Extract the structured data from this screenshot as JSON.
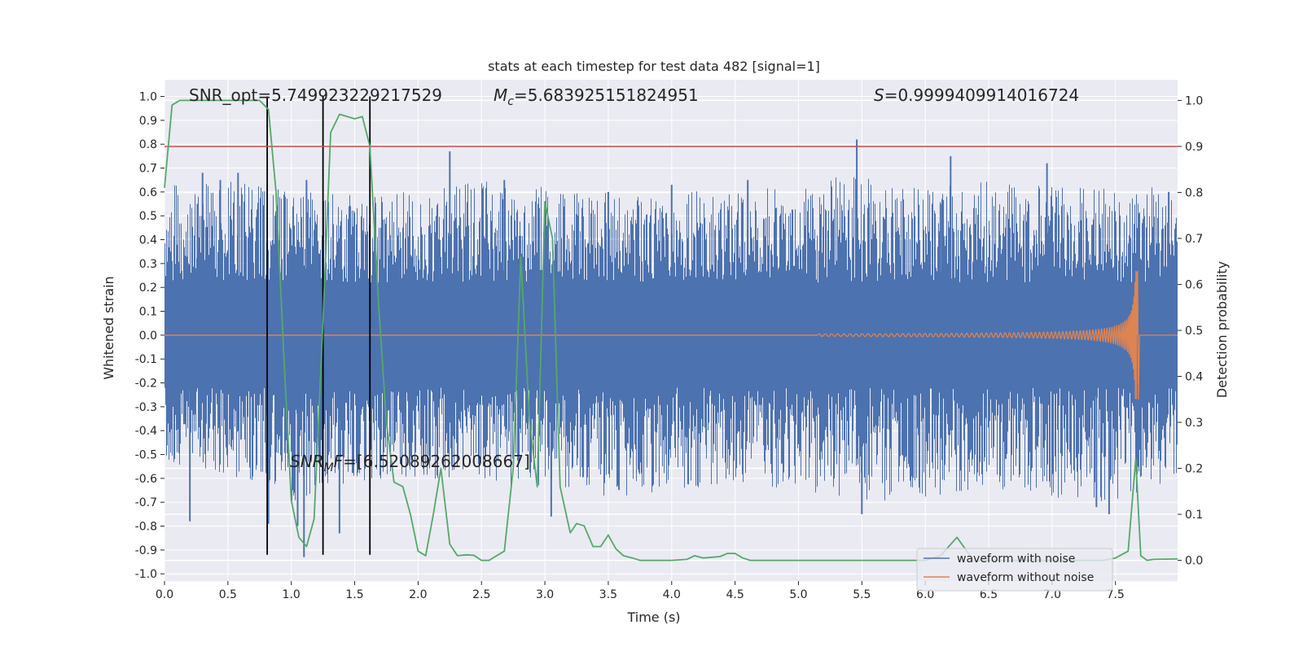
{
  "chart_data": {
    "type": "line",
    "title": "stats at each timestep for test data 482 [signal=1]",
    "xlabel": "Time (s)",
    "ylabel": "Whitened strain",
    "ylabel_right": "Detection probability",
    "xlim": [
      0,
      7.99
    ],
    "ylim": [
      -1.03,
      1.07
    ],
    "ylim_right": [
      -0.045,
      1.045
    ],
    "x_ticks": [
      "0.0",
      "0.5",
      "1.0",
      "1.5",
      "2.0",
      "2.5",
      "3.0",
      "3.5",
      "4.0",
      "4.5",
      "5.0",
      "5.5",
      "6.0",
      "6.5",
      "7.0",
      "7.5"
    ],
    "y_ticks": [
      "-1.0",
      "-0.9",
      "-0.8",
      "-0.7",
      "-0.6",
      "-0.5",
      "-0.4",
      "-0.3",
      "-0.2",
      "-0.1",
      "0.0",
      "0.1",
      "0.2",
      "0.3",
      "0.4",
      "0.5",
      "0.6",
      "0.7",
      "0.8",
      "0.9",
      "1.0"
    ],
    "y_ticks_right": [
      "0.0",
      "0.1",
      "0.2",
      "0.3",
      "0.4",
      "0.5",
      "0.6",
      "0.7",
      "0.8",
      "0.9",
      "1.0"
    ],
    "grid": true,
    "stats": {
      "snr_opt": "SNR_opt=5.749923229217529",
      "mc": "=5.683925151824951",
      "s": "=0.9999409914016724",
      "snr_mf": "=[6.52089262008667]"
    },
    "threshold": 0.9,
    "vertical_markers_x": [
      0.81,
      1.25,
      1.62
    ],
    "series": [
      {
        "name": "waveform with noise",
        "color": "#4c72b0",
        "axis": "left",
        "envelope": [
          [
            0.0,
            -0.58,
            0.63
          ],
          [
            0.25,
            -0.55,
            0.65
          ],
          [
            0.5,
            -0.6,
            0.66
          ],
          [
            0.8,
            -0.62,
            0.62
          ],
          [
            1.0,
            -0.7,
            0.6
          ],
          [
            1.25,
            -0.65,
            0.6
          ],
          [
            1.5,
            -0.62,
            0.6
          ],
          [
            2.0,
            -0.6,
            0.6
          ],
          [
            2.5,
            -0.62,
            0.65
          ],
          [
            3.0,
            -0.65,
            0.62
          ],
          [
            3.5,
            -0.68,
            0.6
          ],
          [
            4.0,
            -0.65,
            0.6
          ],
          [
            4.5,
            -0.62,
            0.62
          ],
          [
            5.0,
            -0.65,
            0.62
          ],
          [
            5.5,
            -0.7,
            0.7
          ],
          [
            6.0,
            -0.68,
            0.62
          ],
          [
            6.5,
            -0.65,
            0.65
          ],
          [
            7.0,
            -0.68,
            0.62
          ],
          [
            7.5,
            -0.7,
            0.62
          ],
          [
            7.99,
            -0.6,
            0.62
          ]
        ],
        "peaks": [
          [
            0.2,
            -0.78
          ],
          [
            0.26,
            0.55
          ],
          [
            0.3,
            0.68
          ],
          [
            0.44,
            0.65
          ],
          [
            0.58,
            0.68
          ],
          [
            0.82,
            -0.79
          ],
          [
            1.05,
            -0.8
          ],
          [
            1.1,
            -0.93
          ],
          [
            1.12,
            0.65
          ],
          [
            1.38,
            -0.83
          ],
          [
            2.25,
            0.77
          ],
          [
            2.68,
            0.65
          ],
          [
            3.05,
            -0.76
          ],
          [
            3.5,
            0.6
          ],
          [
            4.0,
            0.63
          ],
          [
            4.6,
            0.65
          ],
          [
            5.46,
            0.82
          ],
          [
            5.5,
            -0.75
          ],
          [
            6.12,
            0.55
          ],
          [
            6.2,
            0.75
          ],
          [
            6.96,
            0.72
          ],
          [
            7.35,
            -0.72
          ],
          [
            7.45,
            -0.75
          ],
          [
            7.92,
            0.6
          ]
        ]
      },
      {
        "name": "waveform without noise",
        "color": "#dd8452",
        "axis": "left",
        "chirp": {
          "start_s": 5.15,
          "merger_s": 7.67,
          "end_s": 7.69,
          "start_amplitude": 0.005,
          "peak_amplitude": 0.27,
          "start_frequency_hz": 20,
          "peak_frequency_hz": 140
        }
      },
      {
        "name": "Detection probability",
        "color": "#55a868",
        "axis": "right",
        "x": [
          0.0,
          0.06,
          0.12,
          0.25,
          0.5,
          0.75,
          0.82,
          0.88,
          0.94,
          1.0,
          1.06,
          1.12,
          1.18,
          1.25,
          1.31,
          1.38,
          1.5,
          1.56,
          1.62,
          1.69,
          1.75,
          1.81,
          1.88,
          1.94,
          2.0,
          2.06,
          2.12,
          2.18,
          2.25,
          2.31,
          2.38,
          2.44,
          2.5,
          2.56,
          2.62,
          2.68,
          2.75,
          2.81,
          2.88,
          2.94,
          3.0,
          3.06,
          3.12,
          3.2,
          3.25,
          3.31,
          3.38,
          3.44,
          3.5,
          3.56,
          3.62,
          3.69,
          3.75,
          3.88,
          4.0,
          4.12,
          4.18,
          4.25,
          4.38,
          4.44,
          4.5,
          4.56,
          4.62,
          5.0,
          5.5,
          5.62,
          6.0,
          6.12,
          6.25,
          6.38,
          6.5,
          7.0,
          7.2,
          7.4,
          7.5,
          7.6,
          7.66,
          7.7,
          7.75,
          7.8,
          7.99
        ],
        "y": [
          0.81,
          0.99,
          1.0,
          1.0,
          1.0,
          1.0,
          0.98,
          0.8,
          0.45,
          0.13,
          0.05,
          0.03,
          0.09,
          0.52,
          0.93,
          0.97,
          0.96,
          0.965,
          0.9,
          0.55,
          0.3,
          0.17,
          0.16,
          0.1,
          0.02,
          0.01,
          0.1,
          0.2,
          0.035,
          0.01,
          0.012,
          0.011,
          0.0,
          0.0,
          0.01,
          0.02,
          0.2,
          0.66,
          0.3,
          0.16,
          0.78,
          0.7,
          0.16,
          0.06,
          0.08,
          0.075,
          0.03,
          0.03,
          0.055,
          0.025,
          0.01,
          0.005,
          0.0,
          0.0,
          0.0,
          0.002,
          0.01,
          0.005,
          0.008,
          0.015,
          0.015,
          0.005,
          0.0,
          0.0,
          0.0,
          0.0,
          0.0,
          0.01,
          0.05,
          0.0,
          0.0,
          0.0,
          0.0,
          0.0,
          0.005,
          0.02,
          0.22,
          0.01,
          0.0,
          0.002,
          0.003
        ]
      }
    ],
    "legend": {
      "placement": "lower-right",
      "entries": [
        {
          "label": "waveform with noise",
          "color": "#4c72b0"
        },
        {
          "label": "waveform without noise",
          "color": "#dd8452"
        }
      ]
    },
    "colors": {
      "plot_background": "#eaeaf2",
      "grid": "#ffffff",
      "threshold": "#c44e52",
      "markers": "#000000"
    }
  }
}
